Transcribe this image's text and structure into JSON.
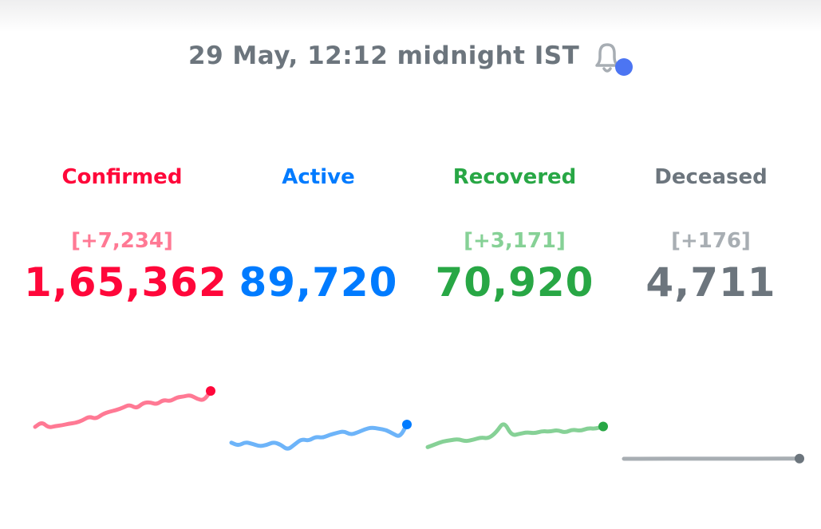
{
  "header": {
    "timestamp": "29 May, 12:12 midnight IST",
    "bell_icon": "bell-icon",
    "notification_dot_color": "#4c75f2"
  },
  "stats": [
    {
      "key": "confirmed",
      "label": "Confirmed",
      "delta": "[+7,234]",
      "value": "1,65,362",
      "color": "#ff073a",
      "light_color": "#ff7994"
    },
    {
      "key": "active",
      "label": "Active",
      "delta": "",
      "value": "89,720",
      "color": "#007bff",
      "light_color": "#6db4f9"
    },
    {
      "key": "recovered",
      "label": "Recovered",
      "delta": "[+3,171]",
      "value": "70,920",
      "color": "#28a745",
      "light_color": "#86d196"
    },
    {
      "key": "deceased",
      "label": "Deceased",
      "delta": "[+176]",
      "value": "4,711",
      "color": "#6c757d",
      "light_color": "#a8aeb3"
    }
  ],
  "sparklines": {
    "confirmed": [
      0.1,
      0.22,
      0.08,
      0.12,
      0.14,
      0.18,
      0.2,
      0.26,
      0.36,
      0.3,
      0.42,
      0.48,
      0.52,
      0.58,
      0.66,
      0.56,
      0.7,
      0.72,
      0.66,
      0.78,
      0.74,
      0.84,
      0.86,
      0.9,
      0.8,
      0.76,
      1.0
    ],
    "active": [
      0.4,
      0.3,
      0.42,
      0.36,
      0.28,
      0.32,
      0.42,
      0.34,
      0.16,
      0.34,
      0.52,
      0.46,
      0.6,
      0.56,
      0.66,
      0.72,
      0.78,
      0.66,
      0.74,
      0.84,
      0.9,
      0.86,
      0.82,
      0.7,
      0.58,
      1.0
    ],
    "recovered": [
      0.1,
      0.2,
      0.3,
      0.34,
      0.38,
      0.3,
      0.36,
      0.44,
      0.4,
      0.62,
      1.0,
      0.5,
      0.56,
      0.62,
      0.58,
      0.66,
      0.64,
      0.7,
      0.6,
      0.72,
      0.66,
      0.76,
      0.74,
      0.82
    ],
    "deceased": [
      0.0,
      0.02,
      0.04,
      0.05,
      0.06,
      0.08,
      0.1
    ]
  }
}
